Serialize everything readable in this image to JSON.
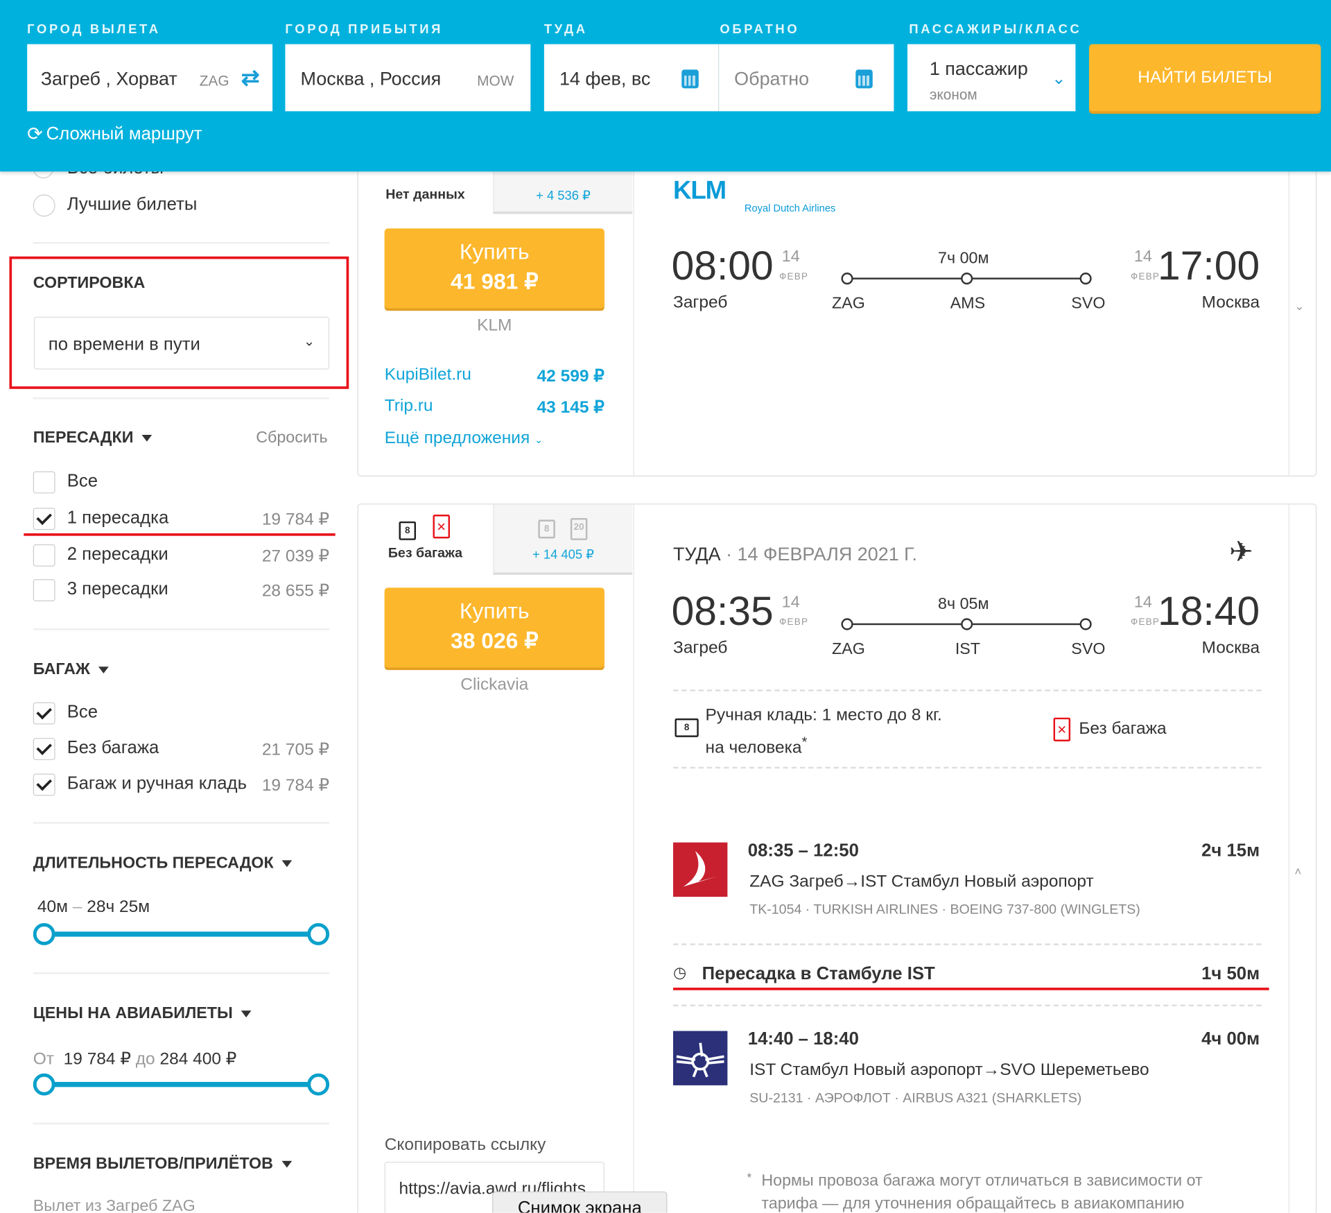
{
  "header": {
    "labels": {
      "from": "ГОРОД ВЫЛЕТА",
      "to": "ГОРОД ПРИБЫТИЯ",
      "depart": "ТУДА",
      "return": "ОБРАТНО",
      "pax": "ПАССАЖИРЫ/КЛАСС"
    },
    "from_value": "Загреб , Хорват",
    "from_code": "ZAG",
    "to_value": "Москва , Россия",
    "to_code": "MOW",
    "depart_value": "14 фев, вс",
    "return_placeholder": "Обратно",
    "pax_value": "1 пассажир",
    "class_value": "эконом",
    "search_label": "НАЙТИ БИЛЕТЫ",
    "complex_route": "Сложный маршрут"
  },
  "sidebar": {
    "radio_all": "Все билеты",
    "radio_best": "Лучшие билеты",
    "sort": {
      "title": "СОРТИРОВКА",
      "value": "по времени в пути"
    },
    "stops": {
      "title": "ПЕРЕСАДКИ",
      "reset": "Сбросить",
      "items": [
        {
          "label": "Все",
          "checked": false,
          "price": ""
        },
        {
          "label": "1 пересадка",
          "checked": true,
          "price": "19 784 ₽"
        },
        {
          "label": "2 пересадки",
          "checked": false,
          "price": "27 039 ₽"
        },
        {
          "label": "3 пересадки",
          "checked": false,
          "price": "28 655 ₽"
        }
      ]
    },
    "baggage": {
      "title": "БАГАЖ",
      "items": [
        {
          "label": "Все",
          "checked": true,
          "price": ""
        },
        {
          "label": "Без багажа",
          "checked": true,
          "price": "21 705 ₽"
        },
        {
          "label": "Багаж и ручная кладь",
          "checked": true,
          "price": "19 784 ₽"
        }
      ]
    },
    "layover": {
      "title": "ДЛИТЕЛЬНОСТЬ ПЕРЕСАДОК",
      "min": "40м",
      "sep": "–",
      "max": "28ч 25м"
    },
    "prices": {
      "title": "ЦЕНЫ НА АВИАБИЛЕТЫ",
      "from_label": "От",
      "from": "19 784 ₽",
      "to_label": "до",
      "to": "284 400 ₽"
    },
    "times": {
      "title": "ВРЕМЯ ВЫЛЕТОВ/ПРИЛЁТОВ",
      "sub": "Вылет из Загреб ZAG"
    }
  },
  "card1": {
    "tab1": "Нет данных",
    "tab2": "+ 4 536 ₽",
    "buy": "Купить",
    "price": "41 981 ₽",
    "seller": "KLM",
    "offers": [
      {
        "name": "KupiBilet.ru",
        "price": "42 599 ₽"
      },
      {
        "name": "Trip.ru",
        "price": "43 145 ₽"
      }
    ],
    "more": "Ещё предложения",
    "logo": "KLM",
    "logo_sub": "Royal Dutch Airlines",
    "dep_time": "08:00",
    "dep_day": "14",
    "dep_mon": "ФЕВР",
    "dep_city": "Загреб",
    "arr_time": "17:00",
    "arr_day": "14",
    "arr_mon": "ФЕВР",
    "arr_city": "Москва",
    "duration": "7ч 00м",
    "airports": [
      "ZAG",
      "AMS",
      "SVO"
    ]
  },
  "card2": {
    "tab1": "Без багажа",
    "tab2": "+ 14 405 ₽",
    "buy": "Купить",
    "price": "38 026 ₽",
    "seller": "Clickavia",
    "copy_label": "Скопировать ссылку",
    "copy_value": "https://avia.awd.ru/flights",
    "direction": "ТУДА",
    "date": "· 14 ФЕВРАЛЯ 2021 Г.",
    "dep_time": "08:35",
    "dep_day": "14",
    "dep_mon": "ФЕВР",
    "dep_city": "Загреб",
    "arr_time": "18:40",
    "arr_day": "14",
    "arr_mon": "ФЕВР",
    "arr_city": "Москва",
    "duration": "8ч 05м",
    "airports": [
      "ZAG",
      "IST",
      "SVO"
    ],
    "hand_luggage": "Ручная кладь: 1 место до 8 кг.",
    "hand_luggage2": "на человека",
    "asterisk": "*",
    "no_baggage": "Без багажа",
    "segments": [
      {
        "times": "08:35 – 12:50",
        "dur": "2ч 15м",
        "route": "ZAG Загреб→IST Стамбул Новый аэропорт",
        "meta": "TK-1054 · TURKISH AIRLINES · BOEING 737-800 (WINGLETS)",
        "color": "#c8202f"
      },
      {
        "times": "14:40 – 18:40",
        "dur": "4ч 00м",
        "route": "IST Стамбул Новый аэропорт→SVO Шереметьево",
        "meta": "SU-2131 · АЭРОФЛОТ · AIRBUS A321 (SHARKLETS)",
        "color": "#2b3079"
      }
    ],
    "layover": "Пересадка в Стамбуле IST",
    "layover_dur": "1ч 50м",
    "footnote1": "Нормы провоза багажа могут отличаться в зависимости от",
    "footnote2": "тарифа — для уточнения обращайтесь в авиакомпанию"
  },
  "tooltip": "Снимок экрана",
  "bag_labels": {
    "hand": "8",
    "checked": "20"
  }
}
